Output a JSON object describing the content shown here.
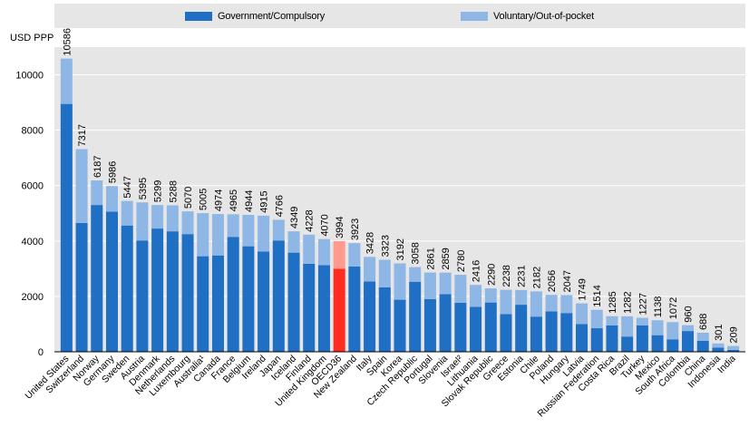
{
  "chart_data": {
    "type": "bar",
    "stacked": true,
    "ylabel": "USD PPP",
    "ylim": [
      0,
      11000
    ],
    "yticks": [
      0,
      2000,
      4000,
      6000,
      8000,
      10000
    ],
    "grid": true,
    "legend_position": "top",
    "colors": {
      "government": "#1f6fc4",
      "voluntary": "#8fb7e6",
      "highlight_government": "#ff2d1f",
      "highlight_voluntary": "#ff9a8c",
      "plot_background": "#e6e6e6",
      "gridline": "#ffffff"
    },
    "highlight_category": "OECD36",
    "categories": [
      "United States",
      "Switzerland",
      "Norway",
      "Germany",
      "Sweden",
      "Austria",
      "Denmark",
      "Netherlands",
      "Luxembourg",
      "Australia¹",
      "Canada",
      "France",
      "Belgium",
      "Ireland",
      "Japan",
      "Iceland",
      "Finland",
      "United Kingdom",
      "OECD36",
      "New Zealand",
      "Italy",
      "Spain",
      "Korea",
      "Czech Republic",
      "Portugal",
      "Slovenia",
      "Israel²",
      "Lithuania",
      "Slovak Republic",
      "Greece",
      "Estonia",
      "Chile",
      "Poland",
      "Hungary",
      "Latvia",
      "Russian Federation",
      "Costa Rica",
      "Brazil",
      "Turkey",
      "Mexico",
      "South Africa",
      "Colombia",
      "China",
      "Indonesia",
      "India"
    ],
    "totals": [
      10586,
      7317,
      6187,
      5986,
      5447,
      5395,
      5299,
      5288,
      5070,
      5005,
      4974,
      4965,
      4944,
      4915,
      4766,
      4349,
      4228,
      4070,
      3994,
      3923,
      3428,
      3323,
      3192,
      3058,
      2861,
      2859,
      2780,
      2416,
      2290,
      2238,
      2231,
      2182,
      2056,
      2047,
      1749,
      1514,
      1285,
      1282,
      1227,
      1138,
      1072,
      960,
      688,
      301,
      209
    ],
    "series": [
      {
        "name": "Government/Compulsory",
        "values": [
          8950,
          4650,
          5300,
          5060,
          4560,
          4020,
          4450,
          4350,
          4250,
          3450,
          3480,
          4150,
          3810,
          3620,
          4020,
          3580,
          3180,
          3130,
          3000,
          3080,
          2540,
          2330,
          1880,
          2530,
          1900,
          2080,
          1770,
          1620,
          1780,
          1360,
          1700,
          1270,
          1460,
          1400,
          1000,
          850,
          950,
          550,
          950,
          600,
          450,
          750,
          400,
          150,
          70
        ]
      },
      {
        "name": "Voluntary/Out-of-pocket",
        "values": [
          1636,
          2667,
          887,
          926,
          887,
          1375,
          849,
          938,
          820,
          1555,
          1494,
          815,
          1134,
          1295,
          746,
          769,
          1048,
          940,
          994,
          843,
          888,
          993,
          1312,
          528,
          961,
          779,
          1010,
          796,
          510,
          878,
          531,
          912,
          596,
          647,
          749,
          664,
          335,
          732,
          277,
          538,
          622,
          210,
          288,
          151,
          139
        ]
      }
    ]
  }
}
